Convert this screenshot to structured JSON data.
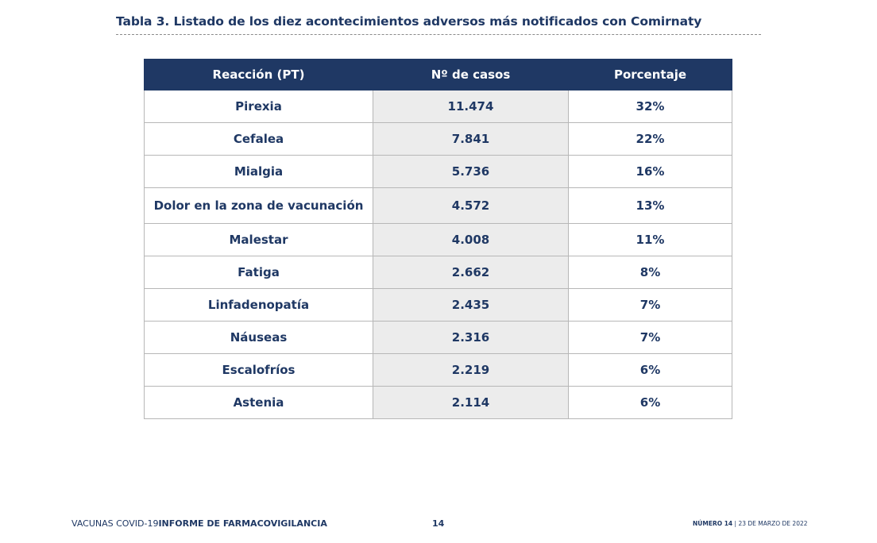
{
  "title": "Tabla 3. Listado de los diez acontecimientos adversos más notificados con Comirnaty",
  "table": {
    "headers": [
      "Reacción (PT)",
      "Nº de casos",
      "Porcentaje"
    ],
    "rows": [
      {
        "reaction": "Pirexia",
        "cases": "11.474",
        "percent": "32%"
      },
      {
        "reaction": "Cefalea",
        "cases": "7.841",
        "percent": "22%"
      },
      {
        "reaction": "Mialgia",
        "cases": "5.736",
        "percent": "16%"
      },
      {
        "reaction": "Dolor en la zona de vacunación",
        "cases": "4.572",
        "percent": "13%"
      },
      {
        "reaction": "Malestar",
        "cases": "4.008",
        "percent": "11%"
      },
      {
        "reaction": "Fatiga",
        "cases": "2.662",
        "percent": "8%"
      },
      {
        "reaction": "Linfadenopatía",
        "cases": "2.435",
        "percent": "7%"
      },
      {
        "reaction": "Náuseas",
        "cases": "2.316",
        "percent": "7%"
      },
      {
        "reaction": "Escalofríos",
        "cases": "2.219",
        "percent": "6%"
      },
      {
        "reaction": "Astenia",
        "cases": "2.114",
        "percent": "6%"
      }
    ]
  },
  "footer": {
    "left_prefix": "VACUNAS COVID-19",
    "left_bold": "INFORME DE FARMACOVIGILANCIA",
    "page_number": "14",
    "issue_label": "NÚMERO 14",
    "separator": "|",
    "date": "23 DE MARZO DE 2022"
  },
  "colors": {
    "header_bg": "#1f3864",
    "text": "#1f3864",
    "cases_column_bg": "#ececec",
    "cell_border": "#b7b7b7"
  }
}
